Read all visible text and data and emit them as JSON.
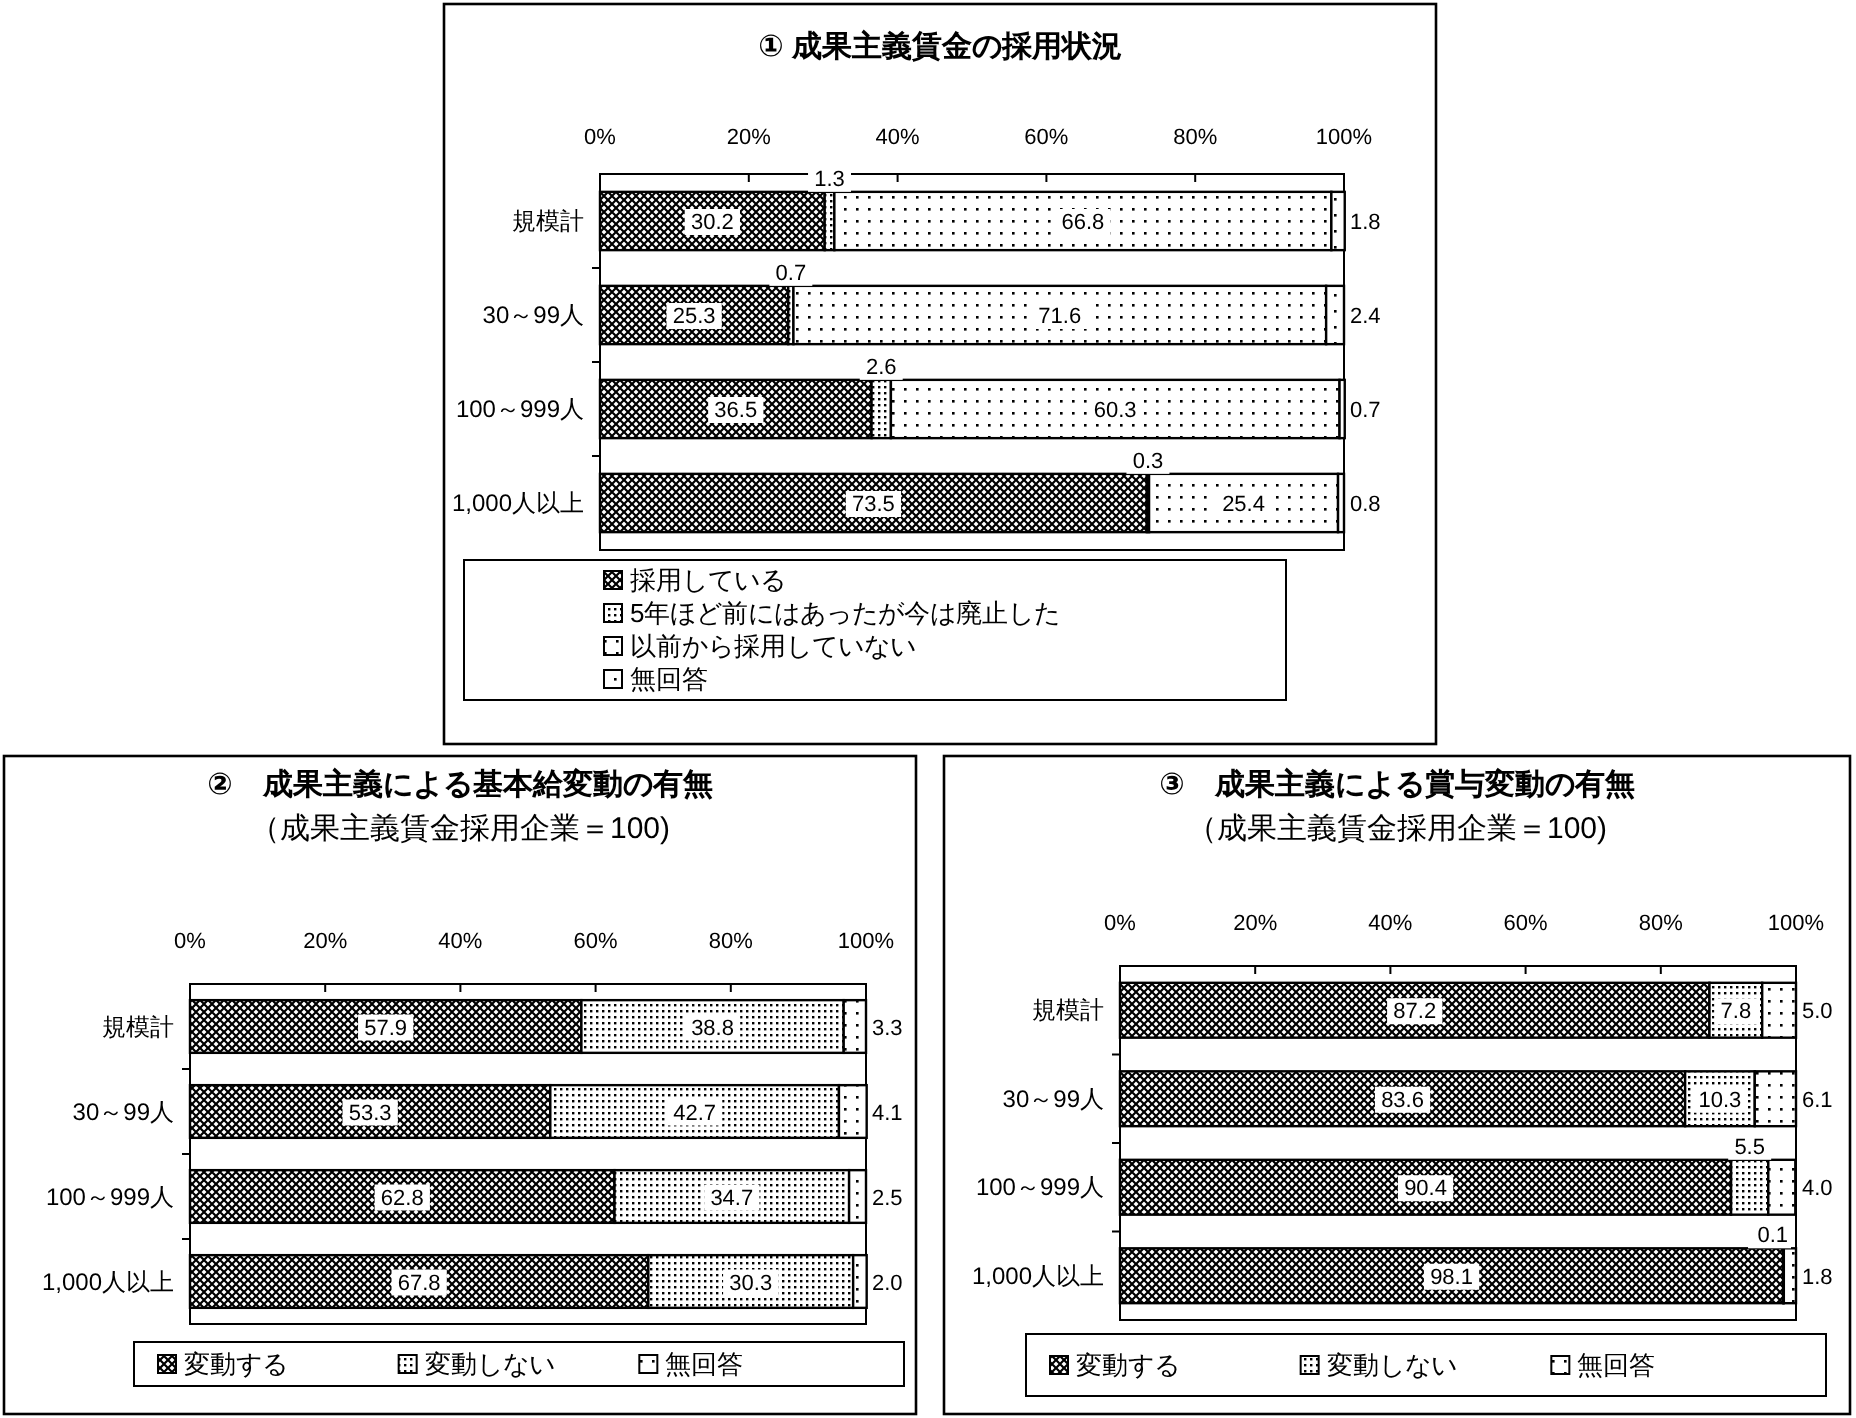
{
  "chart_data": [
    {
      "type": "bar",
      "orientation": "horizontal",
      "stacked": true,
      "title": "① 成果主義賃金の採用状況",
      "categories": [
        "規模計",
        "30～99人",
        "100～999人",
        "1,000人以上"
      ],
      "series": [
        {
          "name": "採用している",
          "color": "#000000",
          "values": [
            30.2,
            25.3,
            36.5,
            73.5
          ],
          "value_labels": [
            "30.2",
            "25.3",
            "36.5",
            "73.5"
          ]
        },
        {
          "name": "5年ほど前にはあったが今は廃止した",
          "color": "#000000",
          "values": [
            1.3,
            0.7,
            2.6,
            0.3
          ],
          "value_labels": [
            "1.3",
            "0.7",
            "2.6",
            "0.3"
          ]
        },
        {
          "name": "以前から採用していない",
          "color": "#000000",
          "values": [
            66.8,
            71.6,
            60.3,
            25.4
          ],
          "value_labels": [
            "66.8",
            "71.6",
            "60.3",
            "25.4"
          ]
        },
        {
          "name": "無回答",
          "color": "#000000",
          "values": [
            1.8,
            2.4,
            0.7,
            0.8
          ],
          "value_labels": [
            "1.8",
            "2.4",
            "0.7",
            "0.8"
          ]
        }
      ],
      "xlim": [
        0,
        100
      ],
      "xticks": [
        {
          "value": 0,
          "label": "0%"
        },
        {
          "value": 20,
          "label": "20%"
        },
        {
          "value": 40,
          "label": "40%"
        },
        {
          "value": 60,
          "label": "60%"
        },
        {
          "value": 80,
          "label": "80%"
        },
        {
          "value": 100,
          "label": "100%"
        }
      ],
      "legend": "bottom",
      "grid": false
    },
    {
      "type": "bar",
      "orientation": "horizontal",
      "stacked": true,
      "title": "②　成果主義による基本給変動の有無",
      "subtitle": "（成果主義賃金採用企業＝100)",
      "categories": [
        "規模計",
        "30～99人",
        "100～999人",
        "1,000人以上"
      ],
      "series": [
        {
          "name": "変動する",
          "color": "#000000",
          "values": [
            57.9,
            53.3,
            62.8,
            67.8
          ],
          "value_labels": [
            "57.9",
            "53.3",
            "62.8",
            "67.8"
          ]
        },
        {
          "name": "変動しない",
          "color": "#000000",
          "values": [
            38.8,
            42.7,
            34.7,
            30.3
          ],
          "value_labels": [
            "38.8",
            "42.7",
            "34.7",
            "30.3"
          ]
        },
        {
          "name": "無回答",
          "color": "#000000",
          "values": [
            3.3,
            4.1,
            2.5,
            2.0
          ],
          "value_labels": [
            "3.3",
            "4.1",
            "2.5",
            "2.0"
          ]
        }
      ],
      "xlim": [
        0,
        100
      ],
      "xticks": [
        {
          "value": 0,
          "label": "0%"
        },
        {
          "value": 20,
          "label": "20%"
        },
        {
          "value": 40,
          "label": "40%"
        },
        {
          "value": 60,
          "label": "60%"
        },
        {
          "value": 80,
          "label": "80%"
        },
        {
          "value": 100,
          "label": "100%"
        }
      ],
      "legend": "bottom",
      "grid": false
    },
    {
      "type": "bar",
      "orientation": "horizontal",
      "stacked": true,
      "title": "③　成果主義による賞与変動の有無",
      "subtitle": "（成果主義賃金採用企業＝100)",
      "categories": [
        "規模計",
        "30～99人",
        "100～999人",
        "1,000人以上"
      ],
      "series": [
        {
          "name": "変動する",
          "color": "#000000",
          "values": [
            87.2,
            83.6,
            90.4,
            98.1
          ],
          "value_labels": [
            "87.2",
            "83.6",
            "90.4",
            "98.1"
          ]
        },
        {
          "name": "変動しない",
          "color": "#000000",
          "values": [
            7.8,
            10.3,
            5.5,
            0.1
          ],
          "value_labels": [
            "7.8",
            "10.3",
            "5.5",
            "0.1"
          ]
        },
        {
          "name": "無回答",
          "color": "#000000",
          "values": [
            5.0,
            6.1,
            4.0,
            1.8
          ],
          "value_labels": [
            "5.0",
            "6.1",
            "4.0",
            "1.8"
          ]
        }
      ],
      "xlim": [
        0,
        100
      ],
      "xticks": [
        {
          "value": 0,
          "label": "0%"
        },
        {
          "value": 20,
          "label": "20%"
        },
        {
          "value": 40,
          "label": "40%"
        },
        {
          "value": 60,
          "label": "60%"
        },
        {
          "value": 80,
          "label": "80%"
        },
        {
          "value": 100,
          "label": "100%"
        }
      ],
      "legend": "bottom",
      "grid": false
    }
  ]
}
